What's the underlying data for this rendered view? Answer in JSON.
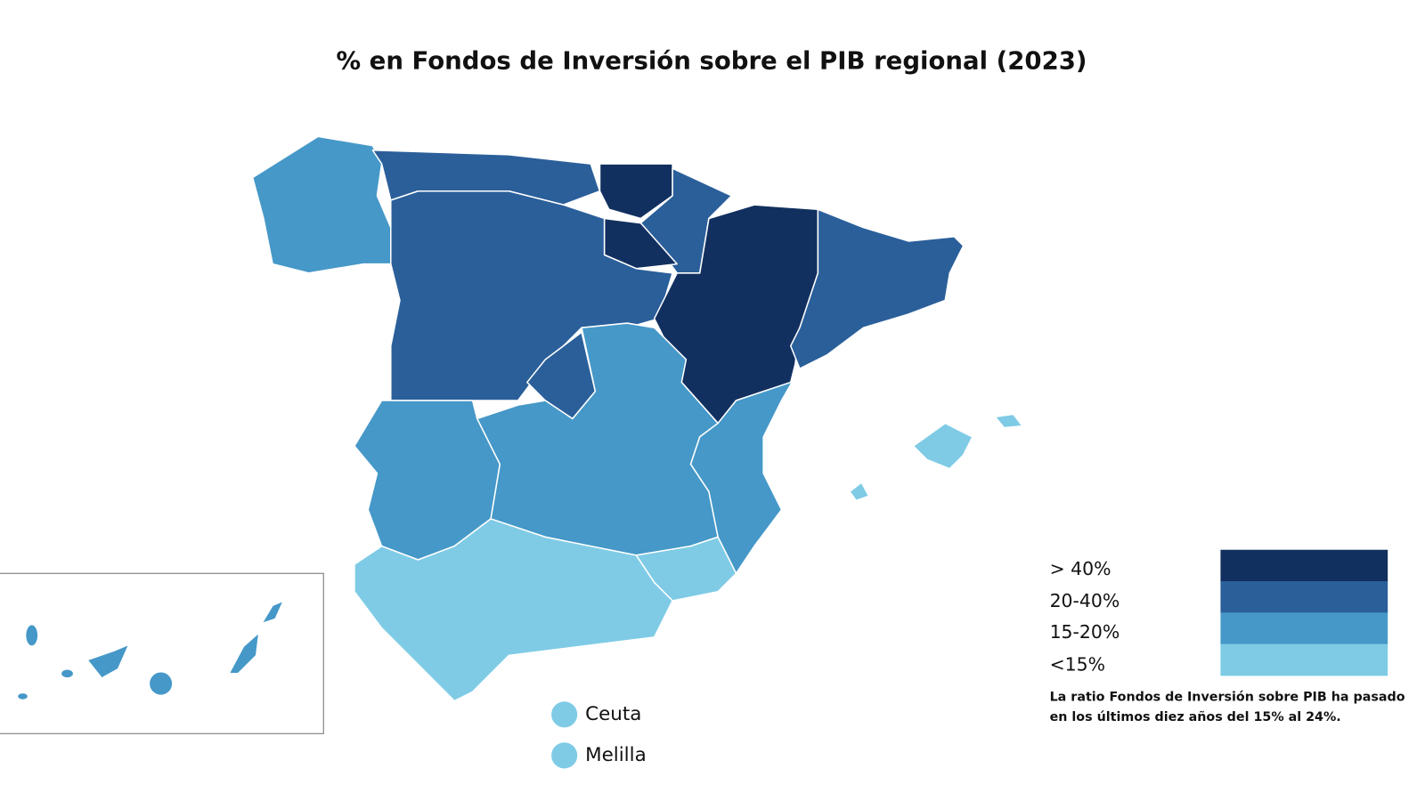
{
  "title": "% en Fondos de Inversión sobre el PIB regional (2023)",
  "legend": {
    "items": [
      {
        "label": "> 40%",
        "color": "#12305f"
      },
      {
        "label": "20-40%",
        "color": "#2a5f9a"
      },
      {
        "label": "15-20%",
        "color": "#4598c8"
      },
      {
        "label": "<15%",
        "color": "#7fcbe6"
      }
    ]
  },
  "note": [
    "La ratio Fondos de Inversión sobre PIB ha pasado",
    "en los últimos diez años del 15% al 24%."
  ],
  "map_labels": [
    "Ceuta",
    "Melilla"
  ]
}
